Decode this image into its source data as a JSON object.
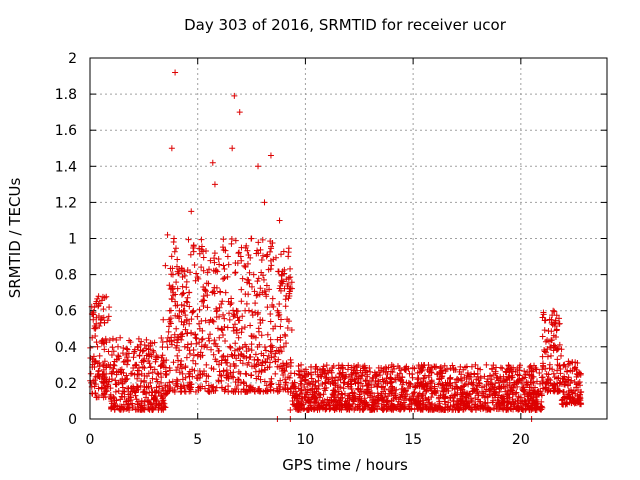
{
  "chart_data": {
    "type": "scatter",
    "title": "Day 303 of 2016, SRMTID for receiver ucor",
    "xlabel": "GPS time / hours",
    "ylabel": "SRMTID / TECUs",
    "xlim": [
      0,
      24
    ],
    "ylim": [
      0,
      2
    ],
    "x_ticks": [
      0,
      5,
      10,
      15,
      20
    ],
    "x_tick_labels": [
      "0",
      "5",
      "10",
      "15",
      "20"
    ],
    "y_ticks": [
      0,
      0.2,
      0.4,
      0.6,
      0.8,
      1,
      1.2,
      1.4,
      1.6,
      1.8,
      2
    ],
    "y_tick_labels": [
      "0",
      "0.2",
      "0.4",
      "0.6",
      "0.8",
      "1",
      "1.2",
      "1.4",
      "1.6",
      "1.8",
      "2"
    ],
    "grid": true,
    "marker": "plus",
    "color": "#dd0000",
    "series": [
      {
        "x": [
          0.05,
          0.1,
          0.15,
          0.2,
          0.25,
          0.3,
          0.35,
          0.4,
          0.45,
          0.5,
          0.55,
          0.6,
          0.65,
          0.7,
          0.75,
          0.8,
          0.85,
          0.9,
          1.0,
          1.1,
          1.2,
          1.3,
          1.4,
          1.5,
          1.6,
          1.7,
          1.8,
          1.9,
          2.0,
          2.1,
          2.2,
          2.3,
          2.4,
          2.5,
          2.6,
          2.7,
          2.8,
          2.9,
          3.0,
          3.1,
          3.2,
          3.3,
          3.4,
          3.5,
          3.6,
          3.7,
          3.75,
          3.8,
          3.85,
          3.9,
          3.95,
          4.0,
          4.05,
          4.1,
          4.15,
          4.2,
          4.3,
          4.4,
          4.5,
          4.6,
          4.7,
          4.8,
          4.9,
          5.0,
          5.1,
          5.2,
          5.3,
          5.4,
          5.5,
          5.6,
          5.7,
          5.8,
          5.9,
          6.0,
          6.1,
          6.2,
          6.3,
          6.4,
          6.5,
          6.6,
          6.7,
          6.8,
          6.9,
          6.95,
          7.0,
          7.05,
          7.1,
          7.2,
          7.3,
          7.4,
          7.5,
          7.6,
          7.7,
          7.8,
          7.9,
          8.0,
          8.1,
          8.2,
          8.3,
          8.4,
          8.5,
          8.6,
          8.7,
          8.8,
          8.9,
          9.0,
          9.1,
          9.2,
          9.3,
          9.4,
          9.5,
          9.6,
          9.8,
          10.0,
          10.2,
          10.4,
          10.6,
          10.8,
          11.0,
          11.2,
          11.4,
          11.6,
          11.8,
          12.0,
          12.2,
          12.4,
          12.6,
          12.8,
          13.0,
          13.2,
          13.4,
          13.6,
          13.8,
          14.0,
          14.2,
          14.4,
          14.6,
          14.8,
          15.0,
          15.2,
          15.4,
          15.6,
          15.8,
          16.0,
          16.2,
          16.4,
          16.6,
          16.8,
          17.0,
          17.2,
          17.4,
          17.6,
          17.8,
          18.0,
          18.2,
          18.4,
          18.6,
          18.8,
          19.0,
          19.2,
          19.4,
          19.6,
          19.8,
          20.0,
          20.2,
          20.4,
          20.6,
          20.8,
          21.0,
          21.2,
          21.4,
          21.5,
          21.6,
          21.7,
          21.8,
          22.0,
          22.2,
          22.4,
          22.6,
          22.8
        ],
        "y": [
          0.2,
          0.45,
          0.55,
          0.62,
          0.5,
          0.65,
          0.4,
          0.68,
          0.35,
          0.55,
          0.42,
          0.3,
          0.2,
          0.15,
          0.25,
          0.18,
          0.3,
          0.22,
          0.25,
          0.3,
          0.15,
          0.4,
          0.45,
          0.2,
          0.15,
          0.1,
          0.08,
          0.12,
          0.18,
          0.3,
          0.4,
          0.35,
          0.25,
          0.15,
          0.12,
          0.1,
          0.2,
          0.15,
          0.12,
          0.1,
          0.15,
          0.2,
          0.55,
          0.85,
          1.02,
          0.6,
          0.72,
          1.5,
          0.8,
          1.0,
          0.65,
          0.5,
          0.35,
          0.45,
          0.6,
          0.3,
          0.25,
          0.4,
          0.55,
          0.7,
          1.15,
          0.6,
          0.45,
          0.35,
          0.5,
          0.65,
          0.4,
          0.3,
          0.75,
          0.55,
          1.42,
          1.3,
          0.6,
          0.45,
          0.5,
          0.35,
          0.7,
          0.9,
          0.4,
          1.5,
          1.79,
          0.6,
          0.45,
          1.7,
          0.9,
          0.5,
          0.35,
          0.6,
          0.3,
          0.75,
          1.0,
          0.8,
          0.45,
          1.4,
          0.55,
          0.7,
          1.2,
          0.9,
          0.35,
          1.46,
          0.5,
          0.25,
          0.6,
          1.1,
          0.8,
          0.4,
          0.2,
          0.15,
          0.05,
          0.1,
          0.12,
          0.08,
          0.1,
          0.12,
          0.09,
          0.11,
          0.14,
          0.1,
          0.08,
          0.12,
          0.15,
          0.1,
          0.2,
          0.08,
          0.12,
          0.06,
          0.1,
          0.15,
          0.12,
          0.09,
          0.13,
          0.18,
          0.1,
          0.14,
          0.22,
          0.12,
          0.16,
          0.2,
          0.14,
          0.22,
          0.18,
          0.15,
          0.2,
          0.17,
          0.12,
          0.15,
          0.2,
          0.13,
          0.18,
          0.16,
          0.1,
          0.14,
          0.2,
          0.25,
          0.15,
          0.3,
          0.2,
          0.12,
          0.15,
          0.18,
          0.1,
          0.16,
          0.2,
          0.12,
          0.1,
          0.14,
          0.12,
          0.15,
          0.2,
          0.25,
          0.35,
          0.6,
          0.4,
          0.3,
          0.2,
          0.15,
          0.3,
          0.12,
          0.25,
          0.15
        ],
        "name": ""
      }
    ],
    "dense_clusters": [
      {
        "x_range": [
          0.0,
          0.95
        ],
        "y_range": [
          0.12,
          0.68
        ]
      },
      {
        "x_range": [
          0.95,
          3.6
        ],
        "y_range": [
          0.05,
          0.45
        ]
      },
      {
        "x_range": [
          3.6,
          9.4
        ],
        "y_range": [
          0.15,
          1.0
        ]
      },
      {
        "x_range": [
          9.4,
          21.0
        ],
        "y_range": [
          0.05,
          0.3
        ]
      },
      {
        "x_range": [
          21.0,
          21.9
        ],
        "y_range": [
          0.15,
          0.6
        ]
      },
      {
        "x_range": [
          21.9,
          22.8
        ],
        "y_range": [
          0.08,
          0.32
        ]
      }
    ],
    "outliers": [
      {
        "x": 3.95,
        "y": 1.92
      },
      {
        "x": 8.7,
        "y": 0.0
      },
      {
        "x": 9.3,
        "y": 0.0
      },
      {
        "x": 20.5,
        "y": 0.0
      }
    ]
  }
}
